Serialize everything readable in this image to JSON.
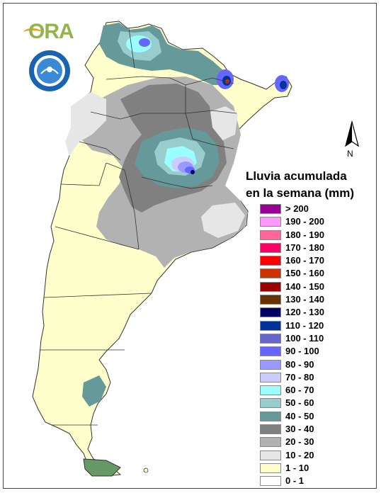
{
  "logo": {
    "name": "ORA"
  },
  "icons": {
    "north_arrow": "north-arrow-icon",
    "seal": "smn-seal-icon"
  },
  "north_label": "N",
  "legend": {
    "title_line1": "Lluvia acumulada",
    "title_line2": "en la semana (mm)",
    "items": [
      {
        "label": "> 200",
        "color": "#990099"
      },
      {
        "label": "190 - 200",
        "color": "#ff99ff"
      },
      {
        "label": "180 - 190",
        "color": "#ff6699"
      },
      {
        "label": "170 - 180",
        "color": "#ff0066"
      },
      {
        "label": "160 - 170",
        "color": "#ff0000"
      },
      {
        "label": "150 - 160",
        "color": "#cc3300"
      },
      {
        "label": "140 - 150",
        "color": "#990000"
      },
      {
        "label": "130 - 140",
        "color": "#663300"
      },
      {
        "label": "120 - 130",
        "color": "#000066"
      },
      {
        "label": "110 - 120",
        "color": "#003399"
      },
      {
        "label": "100 - 110",
        "color": "#6666cc"
      },
      {
        "label": "90 - 100",
        "color": "#6666ff"
      },
      {
        "label": "80 - 90",
        "color": "#9999ff"
      },
      {
        "label": "70 - 80",
        "color": "#ccccff"
      },
      {
        "label": "60 - 70",
        "color": "#99ffff"
      },
      {
        "label": "50 - 60",
        "color": "#99cccc"
      },
      {
        "label": "40 - 50",
        "color": "#669999"
      },
      {
        "label": "30 - 40",
        "color": "#808080"
      },
      {
        "label": "20 - 30",
        "color": "#b2b2b2"
      },
      {
        "label": "10 - 20",
        "color": "#e6e6e6"
      },
      {
        "label": "1 - 10",
        "color": "#ffffcc"
      },
      {
        "label": "0 - 1",
        "color": "#ffffff"
      }
    ]
  }
}
